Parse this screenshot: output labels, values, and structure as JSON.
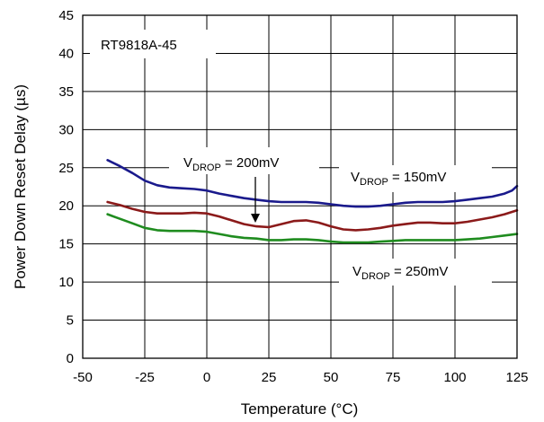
{
  "chart_data": {
    "type": "line",
    "xlabel": "Temperature (°C)",
    "ylabel": "Power Down Reset Delay (µs)",
    "xlim": [
      -50,
      125
    ],
    "ylim": [
      0,
      45
    ],
    "xticks": [
      -50,
      -25,
      0,
      25,
      50,
      75,
      100,
      125
    ],
    "yticks": [
      0,
      5,
      10,
      15,
      20,
      25,
      30,
      35,
      40,
      45
    ],
    "grid": true,
    "device_label": "RT9818A-45",
    "series": [
      {
        "label_main": "V",
        "label_sub": "DROP",
        "label_value": " = 150mV",
        "color": "#1a1a8c",
        "x": [
          -40,
          -35,
          -30,
          -25,
          -20,
          -15,
          -10,
          -5,
          0,
          5,
          10,
          15,
          20,
          25,
          30,
          35,
          40,
          45,
          50,
          55,
          60,
          65,
          70,
          75,
          80,
          85,
          90,
          95,
          100,
          105,
          110,
          115,
          120,
          123,
          125
        ],
        "y": [
          26.0,
          25.2,
          24.3,
          23.3,
          22.7,
          22.4,
          22.3,
          22.2,
          22.0,
          21.6,
          21.3,
          21.0,
          20.8,
          20.6,
          20.5,
          20.5,
          20.5,
          20.4,
          20.2,
          20.0,
          19.9,
          19.9,
          20.0,
          20.2,
          20.4,
          20.5,
          20.5,
          20.5,
          20.6,
          20.8,
          21.0,
          21.2,
          21.6,
          22.0,
          22.6
        ]
      },
      {
        "label_main": "V",
        "label_sub": "DROP",
        "label_value": " = 200mV",
        "color": "#8b1a1a",
        "x": [
          -40,
          -35,
          -30,
          -25,
          -20,
          -15,
          -10,
          -5,
          0,
          5,
          10,
          15,
          20,
          25,
          30,
          35,
          40,
          45,
          50,
          55,
          60,
          65,
          70,
          75,
          80,
          85,
          90,
          95,
          100,
          105,
          110,
          115,
          120,
          125
        ],
        "y": [
          20.5,
          20.1,
          19.6,
          19.2,
          19.0,
          19.0,
          19.0,
          19.1,
          19.0,
          18.6,
          18.1,
          17.6,
          17.3,
          17.2,
          17.6,
          18.0,
          18.1,
          17.8,
          17.3,
          16.9,
          16.8,
          16.9,
          17.1,
          17.4,
          17.6,
          17.8,
          17.8,
          17.7,
          17.7,
          17.9,
          18.2,
          18.5,
          18.9,
          19.4
        ]
      },
      {
        "label_main": "V",
        "label_sub": "DROP",
        "label_value": " = 250mV",
        "color": "#1f8c1f",
        "x": [
          -40,
          -35,
          -30,
          -25,
          -20,
          -15,
          -10,
          -5,
          0,
          5,
          10,
          15,
          20,
          25,
          30,
          35,
          40,
          45,
          50,
          55,
          60,
          65,
          70,
          75,
          80,
          85,
          90,
          95,
          100,
          105,
          110,
          115,
          120,
          125
        ],
        "y": [
          18.9,
          18.3,
          17.7,
          17.1,
          16.8,
          16.7,
          16.7,
          16.7,
          16.6,
          16.3,
          16.0,
          15.8,
          15.7,
          15.5,
          15.5,
          15.6,
          15.6,
          15.5,
          15.3,
          15.2,
          15.2,
          15.2,
          15.3,
          15.4,
          15.5,
          15.5,
          15.5,
          15.5,
          15.5,
          15.6,
          15.7,
          15.9,
          16.1,
          16.3
        ]
      }
    ]
  }
}
